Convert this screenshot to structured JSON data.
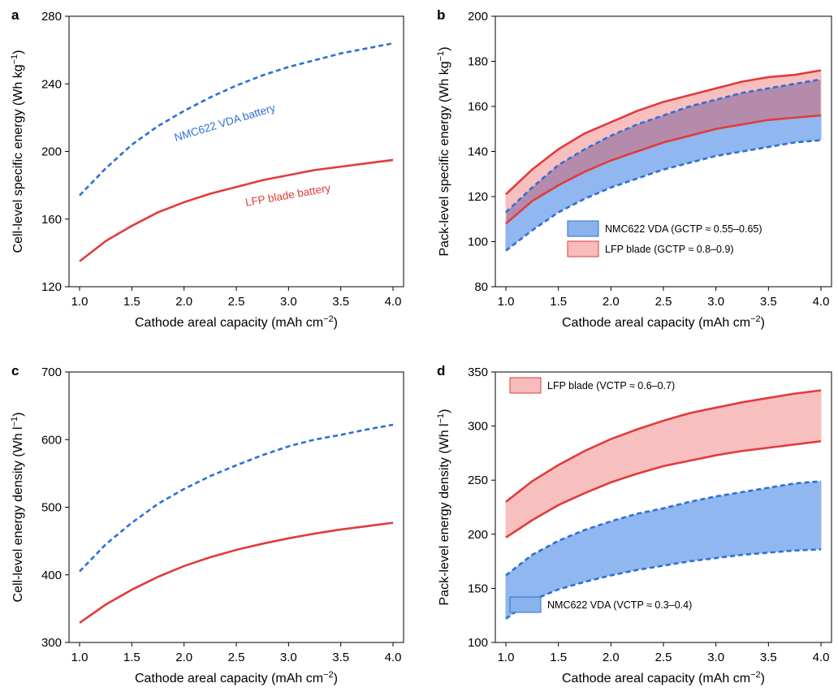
{
  "colors": {
    "nmc": "#2e6fd6",
    "lfp": "#e23b3b",
    "nmc_fill": "#8ab3ee",
    "lfp_fill": "#f8bcbc",
    "overlap_fill": "#b58bab"
  },
  "chart_data": [
    {
      "panel": "a",
      "type": "line",
      "xlabel": "Cathode areal capacity (mAh cm⁻²)",
      "ylabel": "Cell-level specific energy (Wh kg⁻¹)",
      "xlim": [
        1.0,
        4.0
      ],
      "ylim": [
        120,
        280
      ],
      "xticks": [
        "1.0",
        "1.5",
        "2.0",
        "2.5",
        "3.0",
        "3.5",
        "4.0"
      ],
      "yticks": [
        "120",
        "160",
        "200",
        "240",
        "280"
      ],
      "x": [
        1.0,
        1.25,
        1.5,
        1.75,
        2.0,
        2.25,
        2.5,
        2.75,
        3.0,
        3.25,
        3.5,
        3.75,
        4.0
      ],
      "series": [
        {
          "name": "NMC622 VDA battery",
          "style": "dashed",
          "color": "nmc",
          "values": [
            174,
            190,
            204,
            215,
            224,
            232,
            239,
            245,
            250,
            254,
            258,
            261,
            264
          ]
        },
        {
          "name": "LFP blade battery",
          "style": "solid",
          "color": "lfp",
          "values": [
            135,
            147,
            156,
            164,
            170,
            175,
            179,
            183,
            186,
            189,
            191,
            193,
            195
          ]
        }
      ],
      "annotations": [
        {
          "text": "NMC622 VDA battery",
          "x": 2.4,
          "y": 215,
          "angle": -17,
          "color": "nmc"
        },
        {
          "text": "LFP blade battery",
          "x": 3.0,
          "y": 172,
          "angle": -10,
          "color": "lfp"
        }
      ]
    },
    {
      "panel": "b",
      "type": "area",
      "xlabel": "Cathode areal capacity (mAh cm⁻²)",
      "ylabel": "Pack-level specific energy (Wh kg⁻¹)",
      "xlim": [
        1.0,
        4.0
      ],
      "ylim": [
        80,
        200
      ],
      "xticks": [
        "1.0",
        "1.5",
        "2.0",
        "2.5",
        "3.0",
        "3.5",
        "4.0"
      ],
      "yticks": [
        "80",
        "100",
        "120",
        "140",
        "160",
        "180",
        "200"
      ],
      "x": [
        1.0,
        1.25,
        1.5,
        1.75,
        2.0,
        2.25,
        2.5,
        2.75,
        3.0,
        3.25,
        3.5,
        3.75,
        4.0
      ],
      "series": [
        {
          "name": "NMC622 VDA (GCTP ≈ 0.55–0.65)",
          "color": "nmc",
          "style": "dashed",
          "upper": [
            113,
            124,
            134,
            141,
            147,
            152,
            156,
            160,
            163,
            166,
            168,
            170,
            172
          ],
          "lower": [
            96,
            105,
            113,
            119,
            124,
            128,
            132,
            135,
            138,
            140,
            142,
            144,
            145
          ]
        },
        {
          "name": "LFP blade (GCTP ≈ 0.8–0.9)",
          "color": "lfp",
          "style": "solid",
          "upper": [
            121,
            132,
            141,
            148,
            153,
            158,
            162,
            165,
            168,
            171,
            173,
            174,
            176
          ],
          "lower": [
            108,
            118,
            125,
            131,
            136,
            140,
            144,
            147,
            150,
            152,
            154,
            155,
            156
          ]
        }
      ],
      "legend": [
        {
          "label": "NMC622 VDA (GCTP ≈ 0.55–0.65)",
          "color": "nmc"
        },
        {
          "label": "LFP blade (GCTP ≈ 0.8–0.9)",
          "color": "lfp"
        }
      ]
    },
    {
      "panel": "c",
      "type": "line",
      "xlabel": "Cathode areal capacity (mAh cm⁻²)",
      "ylabel": "Cell-level energy density (Wh l⁻¹)",
      "xlim": [
        1.0,
        4.0
      ],
      "ylim": [
        300,
        700
      ],
      "xticks": [
        "1.0",
        "1.5",
        "2.0",
        "2.5",
        "3.0",
        "3.5",
        "4.0"
      ],
      "yticks": [
        "300",
        "400",
        "500",
        "600",
        "700"
      ],
      "x": [
        1.0,
        1.25,
        1.5,
        1.75,
        2.0,
        2.25,
        2.5,
        2.75,
        3.0,
        3.25,
        3.5,
        3.75,
        4.0
      ],
      "series": [
        {
          "name": "NMC622 VDA battery",
          "style": "dashed",
          "color": "nmc",
          "values": [
            405,
            445,
            477,
            505,
            527,
            546,
            562,
            577,
            590,
            600,
            607,
            615,
            622
          ]
        },
        {
          "name": "LFP blade battery",
          "style": "solid",
          "color": "lfp",
          "values": [
            329,
            356,
            378,
            397,
            413,
            426,
            437,
            446,
            454,
            461,
            467,
            472,
            477
          ]
        }
      ]
    },
    {
      "panel": "d",
      "type": "area",
      "xlabel": "Cathode areal capacity (mAh cm⁻²)",
      "ylabel": "Pack-level energy density (Wh l⁻¹)",
      "xlim": [
        1.0,
        4.0
      ],
      "ylim": [
        100,
        350
      ],
      "xticks": [
        "1.0",
        "1.5",
        "2.0",
        "2.5",
        "3.0",
        "3.5",
        "4.0"
      ],
      "yticks": [
        "100",
        "150",
        "200",
        "250",
        "300",
        "350"
      ],
      "x": [
        1.0,
        1.25,
        1.5,
        1.75,
        2.0,
        2.25,
        2.5,
        2.75,
        3.0,
        3.25,
        3.5,
        3.75,
        4.0
      ],
      "series": [
        {
          "name": "LFP blade (VCTP ≈ 0.6–0.7)",
          "color": "lfp",
          "style": "solid",
          "upper": [
            230,
            249,
            264,
            277,
            288,
            297,
            305,
            312,
            317,
            322,
            326,
            330,
            333
          ],
          "lower": [
            197,
            213,
            227,
            238,
            248,
            256,
            263,
            268,
            273,
            277,
            280,
            283,
            286
          ]
        },
        {
          "name": "NMC622 VDA (VCTP ≈ 0.3–0.4)",
          "color": "nmc",
          "style": "dashed",
          "upper": [
            162,
            181,
            194,
            204,
            212,
            219,
            224,
            230,
            235,
            239,
            243,
            247,
            249
          ],
          "lower": [
            122,
            139,
            149,
            156,
            162,
            167,
            171,
            175,
            178,
            181,
            183,
            185,
            186
          ]
        }
      ],
      "legend": [
        {
          "label": "LFP blade (VCTP ≈ 0.6–0.7)",
          "color": "lfp"
        },
        {
          "label": "NMC622 VDA (VCTP ≈ 0.3–0.4)",
          "color": "nmc"
        }
      ]
    }
  ]
}
